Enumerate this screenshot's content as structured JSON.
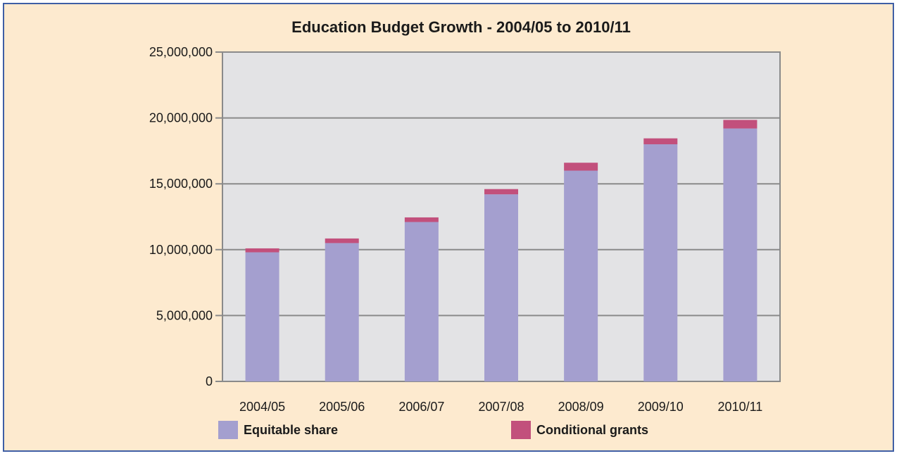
{
  "chart_data": {
    "type": "bar",
    "stacked": true,
    "title": "Education Budget Growth - 2004/05 to 2010/11",
    "xlabel": "",
    "ylabel": "",
    "ylim": [
      0,
      25000000
    ],
    "yticks": [
      "0",
      "5,000,000",
      "10,000,000",
      "15,000,000",
      "20,000,000",
      "25,000,000"
    ],
    "ytick_values": [
      0,
      5000000,
      10000000,
      15000000,
      20000000,
      25000000
    ],
    "grid": true,
    "legend_position": "bottom",
    "categories": [
      "2004/05",
      "2005/06",
      "2006/07",
      "2007/08",
      "2008/09",
      "2009/10",
      "2010/11"
    ],
    "series": [
      {
        "name": "Equitable share",
        "color": "#a49fcf",
        "values": [
          9800000,
          10500000,
          12100000,
          14200000,
          16000000,
          18000000,
          19200000
        ]
      },
      {
        "name": "Conditional grants",
        "color": "#c2507c",
        "values": [
          300000,
          350000,
          350000,
          400000,
          600000,
          450000,
          650000
        ]
      }
    ]
  },
  "colors": {
    "background": "#fdeacf",
    "border": "#3f5fa5",
    "plot_area": "#e3e3e5",
    "gridline": "#8a8a8a"
  }
}
